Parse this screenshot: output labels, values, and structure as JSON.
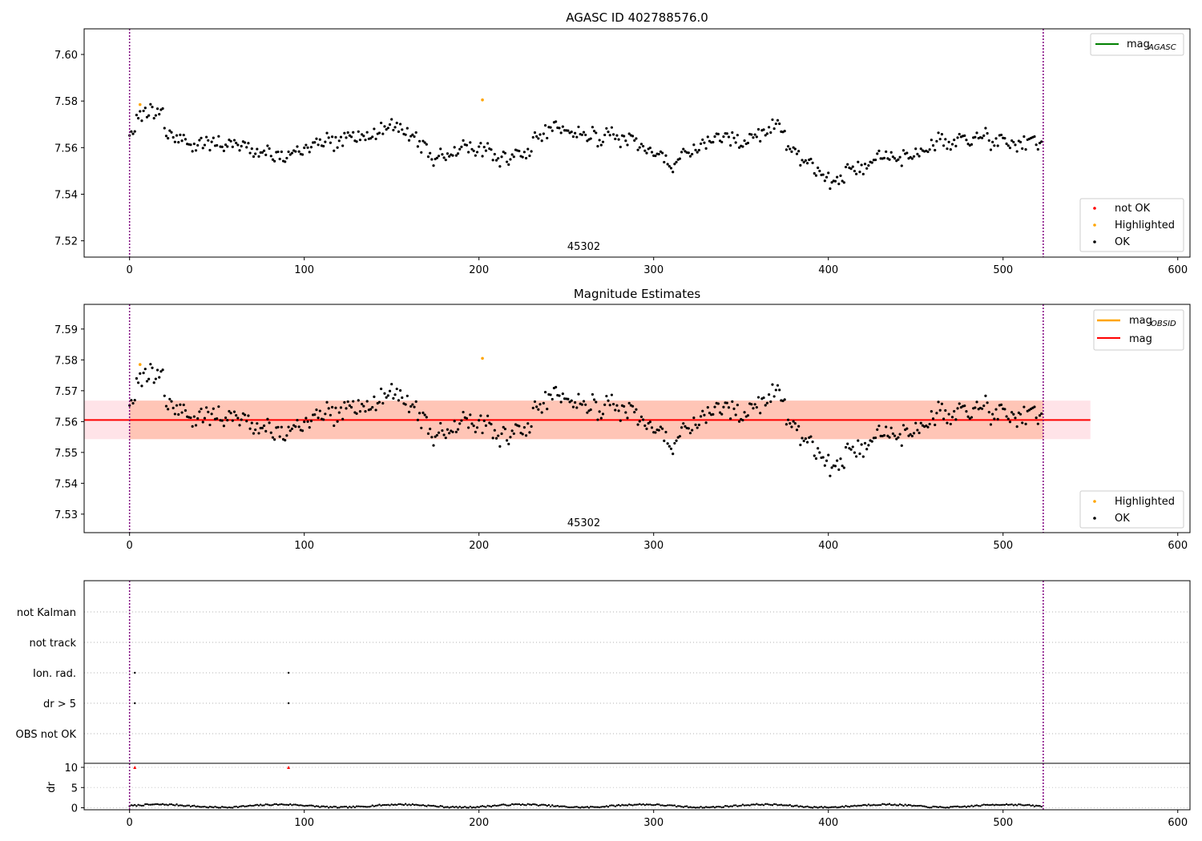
{
  "chart_data": [
    {
      "type": "scatter",
      "title": "AGASC ID 402788576.0",
      "ylim": [
        7.513,
        7.611
      ],
      "xlim": [
        -26,
        607
      ],
      "x_ticks": [
        0,
        100,
        200,
        300,
        400,
        500,
        600
      ],
      "y_ticks": [
        7.52,
        7.54,
        7.56,
        7.58,
        7.6
      ],
      "y_tick_labels": [
        "7.52",
        "7.54",
        "7.56",
        "7.58",
        "7.60"
      ],
      "vlines": [
        0,
        523
      ],
      "obsid_label": "45302",
      "obsid_label_x": 260,
      "line_legend": [
        {
          "name": "mag",
          "subscript": "AGASC",
          "color": "#008000"
        }
      ],
      "point_legend": [
        {
          "name": "not OK",
          "color": "#ff0000"
        },
        {
          "name": "Highlighted",
          "color": "#ffa500"
        },
        {
          "name": "OK",
          "color": "#000000"
        }
      ],
      "highlighted_points": [
        [
          6,
          7.5785
        ],
        [
          202,
          7.5805
        ]
      ],
      "mag_estimate": 7.5605,
      "noise_seed": 42
    },
    {
      "type": "scatter",
      "title": "Magnitude Estimates",
      "ylim": [
        7.524,
        7.598
      ],
      "xlim": [
        -26,
        607
      ],
      "x_ticks": [
        0,
        100,
        200,
        300,
        400,
        500,
        600
      ],
      "y_ticks": [
        7.53,
        7.54,
        7.55,
        7.56,
        7.57,
        7.58,
        7.59
      ],
      "y_tick_labels": [
        "7.53",
        "7.54",
        "7.55",
        "7.56",
        "7.57",
        "7.58",
        "7.59"
      ],
      "vlines": [
        0,
        523
      ],
      "obsid_label": "45302",
      "obsid_label_x": 260,
      "mag": 7.5605,
      "mag_band": [
        7.5543,
        7.5668
      ],
      "mag_band_xrange": [
        -26,
        550
      ],
      "mag_obsid_band_xrange": [
        0,
        523
      ],
      "line_legend": [
        {
          "name": "mag",
          "subscript": "OBSID",
          "color": "#ffa500"
        },
        {
          "name": "mag",
          "subscript": "",
          "color": "#ff0000"
        }
      ],
      "point_legend": [
        {
          "name": "Highlighted",
          "color": "#ffa500"
        },
        {
          "name": "OK",
          "color": "#000000"
        }
      ],
      "highlighted_points": [
        [
          6,
          7.5785
        ],
        [
          202,
          7.5805
        ]
      ]
    },
    {
      "type": "scatter",
      "title": "",
      "flag_categories": [
        "not Kalman",
        "not track",
        "Ion. rad.",
        "dr > 5",
        "OBS not OK"
      ],
      "flag_points": {
        "Ion. rad.": [
          3,
          91
        ],
        "dr > 5": [
          3,
          91
        ]
      },
      "dr_ylabel": "dr",
      "dr_ylim": [
        -0.5,
        11
      ],
      "dr_y_ticks": [
        0,
        5,
        10
      ],
      "dr_y_tick_labels": [
        "0",
        "5",
        "10"
      ],
      "dr_outliers": [
        [
          3,
          10
        ],
        [
          91,
          10
        ]
      ],
      "xlim": [
        -26,
        607
      ],
      "x_ticks": [
        0,
        100,
        200,
        300,
        400,
        500,
        600
      ],
      "vlines": [
        0,
        523
      ]
    }
  ]
}
